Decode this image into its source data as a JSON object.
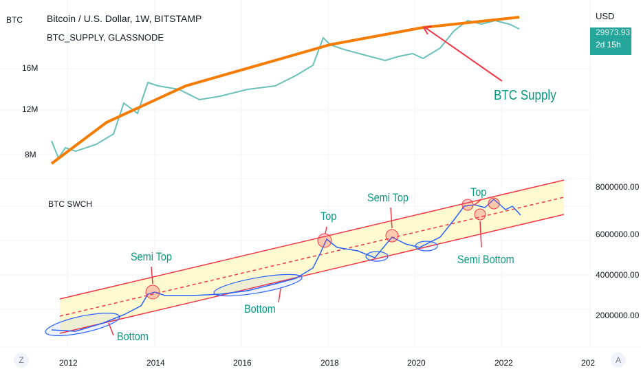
{
  "top_pane": {
    "scale_label": "BTC",
    "title": "Bitcoin / U.S. Dollar, 1W, BITSTAMP",
    "indicator": "BTC_SUPPLY, GLASSNODE",
    "y_ticks": [
      "16M",
      "12M",
      "8M"
    ],
    "currency": "USD",
    "price": "29973.93",
    "countdown": "2d 15h",
    "annotation": "BTC Supply"
  },
  "bottom_pane": {
    "title": "BTC SWCH",
    "y_ticks": [
      "8000000.00",
      "6000000.00",
      "4000000.00",
      "2000000.00"
    ],
    "annotations": {
      "semi_top_1": "Semi Top",
      "bottom_1": "Bottom",
      "bottom_2": "Bottom",
      "top_1": "Top",
      "semi_top_2": "Semi Top",
      "top_2": "Top",
      "semi_bottom": "Semi Bottom"
    }
  },
  "x_axis": {
    "ticks": [
      "2012",
      "2014",
      "2016",
      "2018",
      "2020",
      "2022",
      "202"
    ],
    "left_button": "Z",
    "right_button": "A"
  },
  "colors": {
    "supply": "#f57c00",
    "swch": "#2962ff",
    "channel": "#f23645",
    "fill": "#fff9c4",
    "label": "#089981",
    "badge": "#26a69a"
  }
}
